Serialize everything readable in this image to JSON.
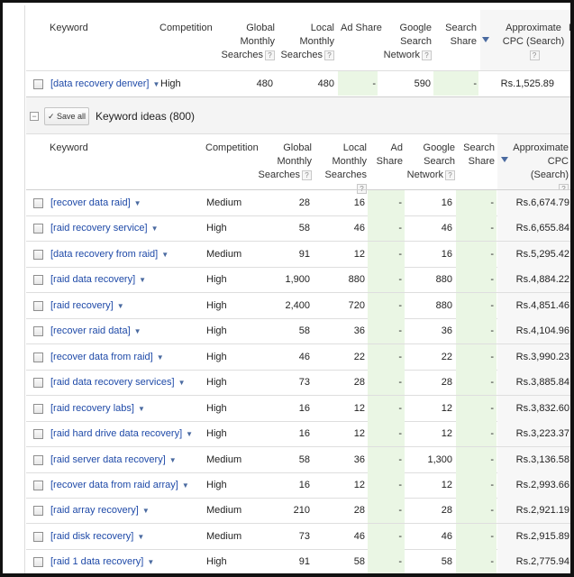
{
  "colors": {
    "link": "#1f4aa8",
    "green_cell": "#eaf6e4",
    "header_bg": "#f6f6f6"
  },
  "icons": {
    "help": "question-mark-icon",
    "sort": "sort-desc-arrow-icon",
    "dropdown": "chevron-down-icon",
    "check": "checkmark-icon"
  },
  "top_header": {
    "keyword": "Keyword",
    "competition": "Competition",
    "global_monthly": [
      "Global Monthly",
      "Searches"
    ],
    "local_monthly": [
      "Local Monthly",
      "Searches"
    ],
    "ad_share": "Ad Share",
    "google_search_network": [
      "Google",
      "Search",
      "Network"
    ],
    "search_share": [
      "Search",
      "Share"
    ],
    "cpc": [
      "Approximate",
      "CPC (Search)"
    ],
    "help": "?"
  },
  "searched_row": {
    "keyword": "[data recovery denver]",
    "competition": "High",
    "global": "480",
    "local": "480",
    "ad_share": "-",
    "gsn": "590",
    "search_share": "-",
    "cpc": "Rs.1,525.89"
  },
  "ideas_bar": {
    "collapse": "−",
    "save_all": "Save all",
    "check": "✓",
    "title": "Keyword ideas (800)"
  },
  "ideas_header": {
    "keyword": "Keyword",
    "competition": "Competition",
    "global": [
      "Global",
      "Monthly",
      "Searches"
    ],
    "local": [
      "Local",
      "Monthly",
      "Searches"
    ],
    "ad_share": [
      "Ad",
      "Share"
    ],
    "gsn": [
      "Google",
      "Search",
      "Network"
    ],
    "search_share": [
      "Search",
      "Share"
    ],
    "cpc": [
      "Approximate",
      "CPC (Search)"
    ],
    "help": "?"
  },
  "rows": [
    {
      "keyword": "[recover data raid]",
      "competition": "Medium",
      "global": "28",
      "local": "16",
      "ad_share": "-",
      "gsn": "16",
      "search_share": "-",
      "cpc": "Rs.6,674.79"
    },
    {
      "keyword": "[raid recovery service]",
      "competition": "High",
      "global": "58",
      "local": "46",
      "ad_share": "-",
      "gsn": "46",
      "search_share": "-",
      "cpc": "Rs.6,655.84"
    },
    {
      "keyword": "[data recovery from raid]",
      "competition": "Medium",
      "global": "91",
      "local": "12",
      "ad_share": "-",
      "gsn": "16",
      "search_share": "-",
      "cpc": "Rs.5,295.42"
    },
    {
      "keyword": "[raid data recovery]",
      "competition": "High",
      "global": "1,900",
      "local": "880",
      "ad_share": "-",
      "gsn": "880",
      "search_share": "-",
      "cpc": "Rs.4,884.22"
    },
    {
      "keyword": "[raid recovery]",
      "competition": "High",
      "global": "2,400",
      "local": "720",
      "ad_share": "-",
      "gsn": "880",
      "search_share": "-",
      "cpc": "Rs.4,851.46"
    },
    {
      "keyword": "[recover raid data]",
      "competition": "High",
      "global": "58",
      "local": "36",
      "ad_share": "-",
      "gsn": "36",
      "search_share": "-",
      "cpc": "Rs.4,104.96"
    },
    {
      "keyword": "[recover data from raid]",
      "competition": "High",
      "global": "46",
      "local": "22",
      "ad_share": "-",
      "gsn": "22",
      "search_share": "-",
      "cpc": "Rs.3,990.23"
    },
    {
      "keyword": "[raid data recovery services]",
      "competition": "High",
      "global": "73",
      "local": "28",
      "ad_share": "-",
      "gsn": "28",
      "search_share": "-",
      "cpc": "Rs.3,885.84"
    },
    {
      "keyword": "[raid recovery labs]",
      "competition": "High",
      "global": "16",
      "local": "12",
      "ad_share": "-",
      "gsn": "12",
      "search_share": "-",
      "cpc": "Rs.3,832.60"
    },
    {
      "keyword": "[raid hard drive data recovery]",
      "competition": "High",
      "global": "16",
      "local": "12",
      "ad_share": "-",
      "gsn": "12",
      "search_share": "-",
      "cpc": "Rs.3,223.37"
    },
    {
      "keyword": "[raid server data recovery]",
      "competition": "Medium",
      "global": "58",
      "local": "36",
      "ad_share": "-",
      "gsn": "1,300",
      "search_share": "-",
      "cpc": "Rs.3,136.58"
    },
    {
      "keyword": "[recover data from raid array]",
      "competition": "High",
      "global": "16",
      "local": "12",
      "ad_share": "-",
      "gsn": "12",
      "search_share": "-",
      "cpc": "Rs.2,993.66"
    },
    {
      "keyword": "[raid array recovery]",
      "competition": "Medium",
      "global": "210",
      "local": "28",
      "ad_share": "-",
      "gsn": "28",
      "search_share": "-",
      "cpc": "Rs.2,921.19"
    },
    {
      "keyword": "[raid disk recovery]",
      "competition": "Medium",
      "global": "73",
      "local": "46",
      "ad_share": "-",
      "gsn": "46",
      "search_share": "-",
      "cpc": "Rs.2,915.89"
    },
    {
      "keyword": "[raid 1 data recovery]",
      "competition": "High",
      "global": "91",
      "local": "58",
      "ad_share": "-",
      "gsn": "58",
      "search_share": "-",
      "cpc": "Rs.2,775.94"
    }
  ]
}
